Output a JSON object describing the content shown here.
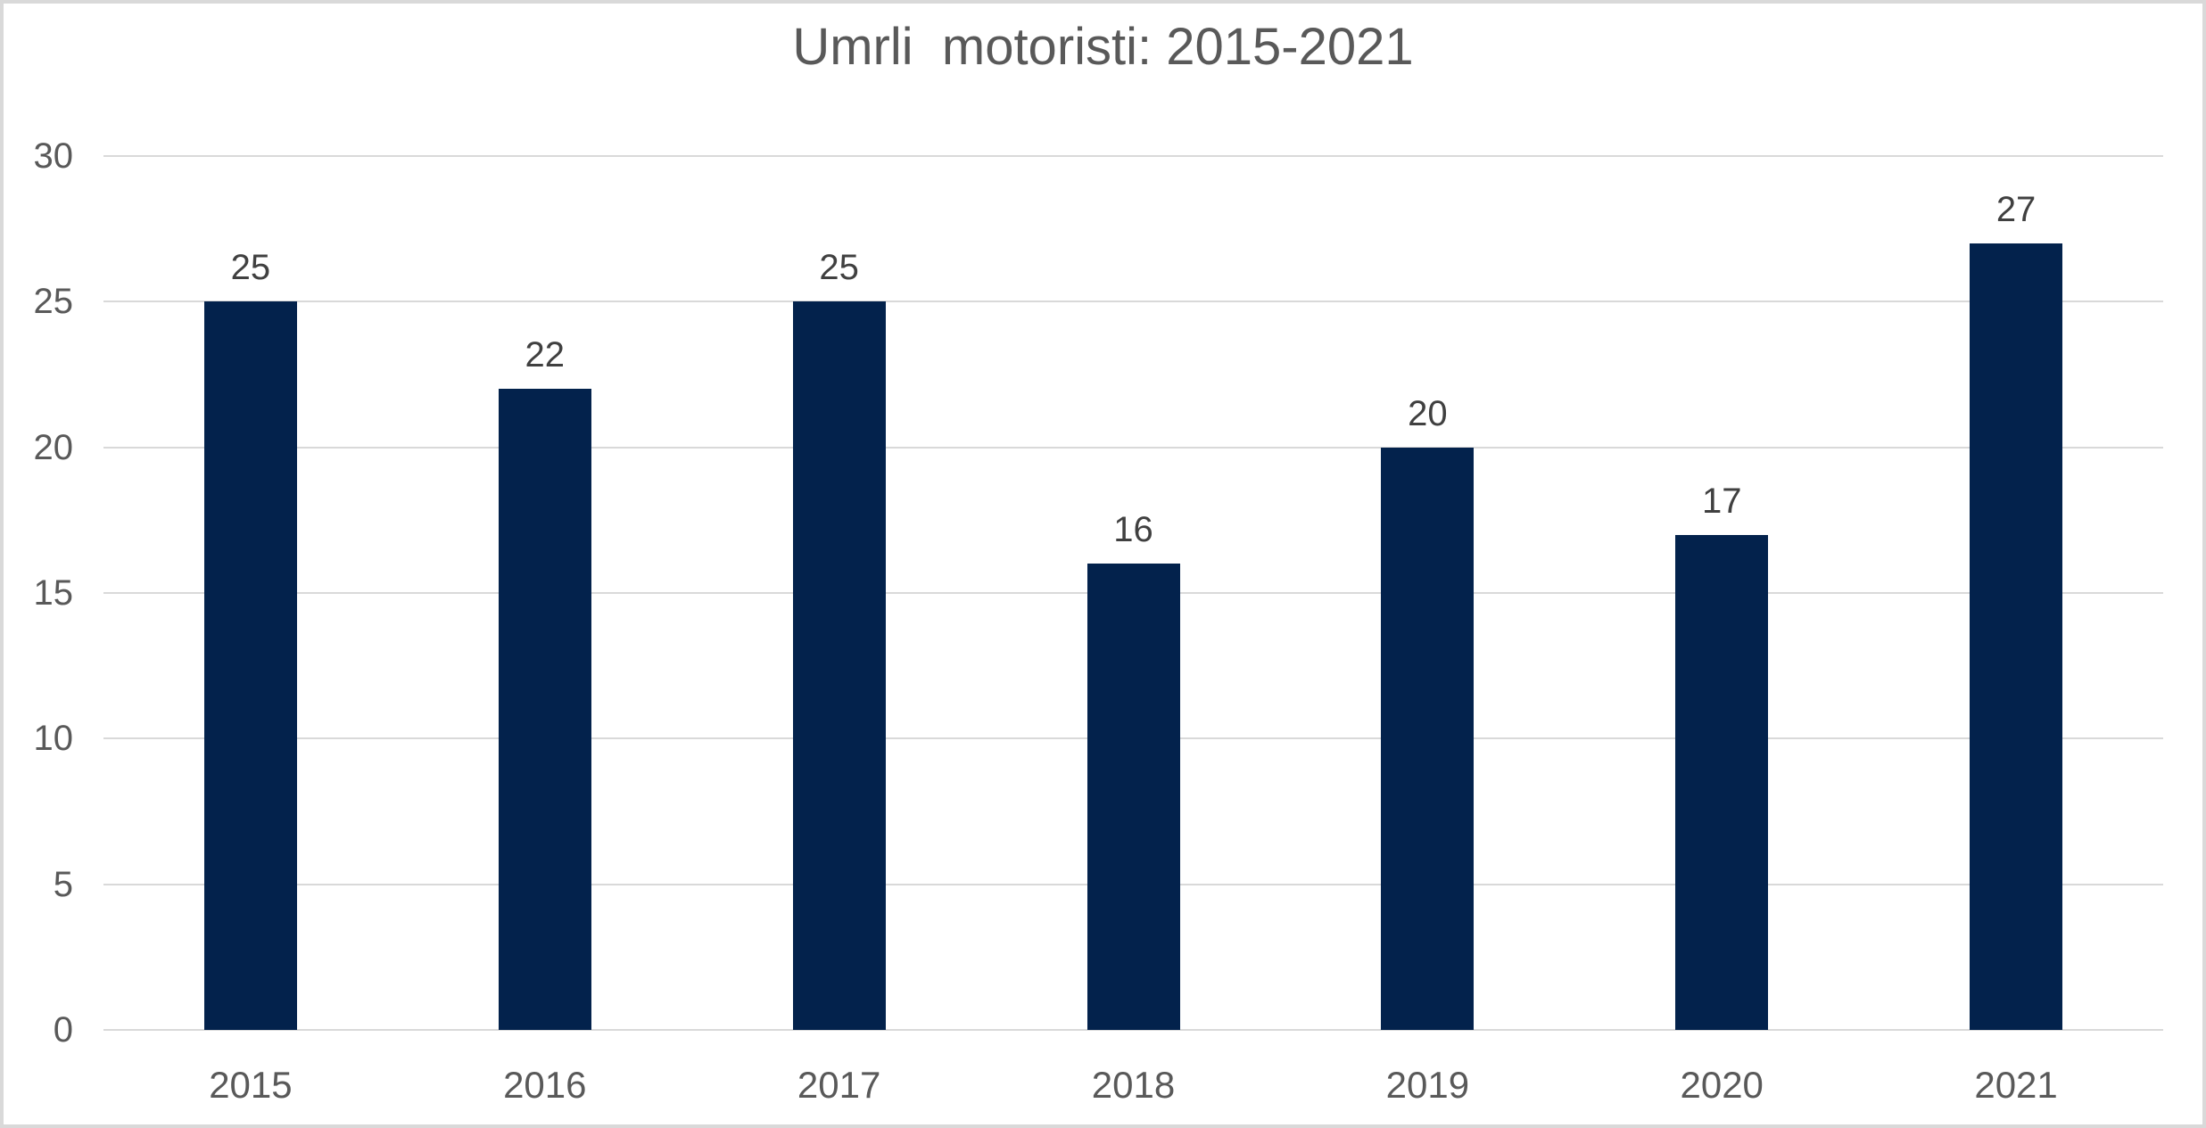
{
  "chart_data": {
    "type": "bar",
    "title": "Umrli  motoristi: 2015-2021",
    "categories": [
      "2015",
      "2016",
      "2017",
      "2018",
      "2019",
      "2020",
      "2021"
    ],
    "values": [
      25,
      22,
      25,
      16,
      20,
      17,
      27
    ],
    "xlabel": "",
    "ylabel": "",
    "ylim": [
      0,
      30
    ],
    "yticks": [
      0,
      5,
      10,
      15,
      20,
      25,
      30
    ],
    "grid": true,
    "legend": "none",
    "bar_color": "#03224c",
    "gridline_color": "#d9d9d9",
    "axis_label_color": "#595959",
    "data_label_color": "#404040",
    "title_color": "#595959",
    "frame_color": "#d9d9d9",
    "background_color": "#ffffff"
  }
}
